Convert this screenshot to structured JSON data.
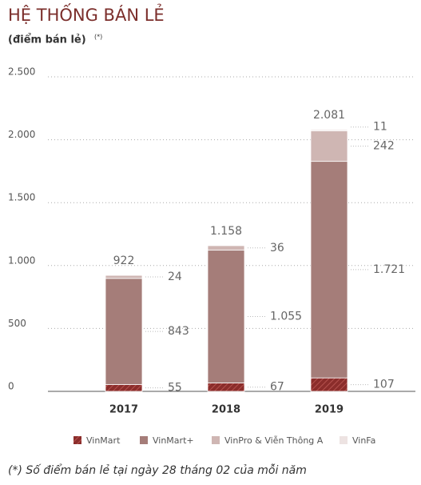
{
  "chart_data": {
    "type": "stacked_bar",
    "title": "HỆ THỐNG BÁN LẺ",
    "subtitle": "(điểm bán lẻ)",
    "subtitle_note": "(*)",
    "footnote": "(*) Số điểm bán lẻ tại ngày 28 tháng 02 của mỗi năm",
    "categories": [
      "2017",
      "2018",
      "2019"
    ],
    "series": [
      {
        "name": "VinMart",
        "color": "#8b2d2b",
        "hatch": true,
        "values": [
          55,
          67,
          107
        ],
        "value_labels": [
          "55",
          "67",
          "107"
        ]
      },
      {
        "name": "VinMart+",
        "color": "#a57d79",
        "values": [
          843,
          1055,
          1721
        ],
        "value_labels": [
          "843",
          "1.055",
          "1.721"
        ]
      },
      {
        "name": "VinPro & Viễn Thông A",
        "color": "#cfb6b3",
        "values": [
          24,
          36,
          242
        ],
        "value_labels": [
          "24",
          "36",
          "242"
        ]
      },
      {
        "name": "VinFa",
        "color": "#ede3e2",
        "values": [
          null,
          null,
          11
        ],
        "value_labels": [
          null,
          null,
          "11"
        ]
      }
    ],
    "totals": {
      "values": [
        922,
        1158,
        2081
      ],
      "value_labels": [
        "922",
        "1.158",
        "2.081"
      ]
    },
    "ylim": [
      0,
      2500
    ],
    "yticks": [
      0,
      500,
      {
        "value": 1000,
        "label": "1.000"
      },
      {
        "value": 1500,
        "label": "1.500"
      },
      {
        "value": 2000,
        "label": "2.000"
      },
      {
        "value": 2500,
        "label": "2.500"
      }
    ],
    "grid": true,
    "legend": "bottom"
  }
}
